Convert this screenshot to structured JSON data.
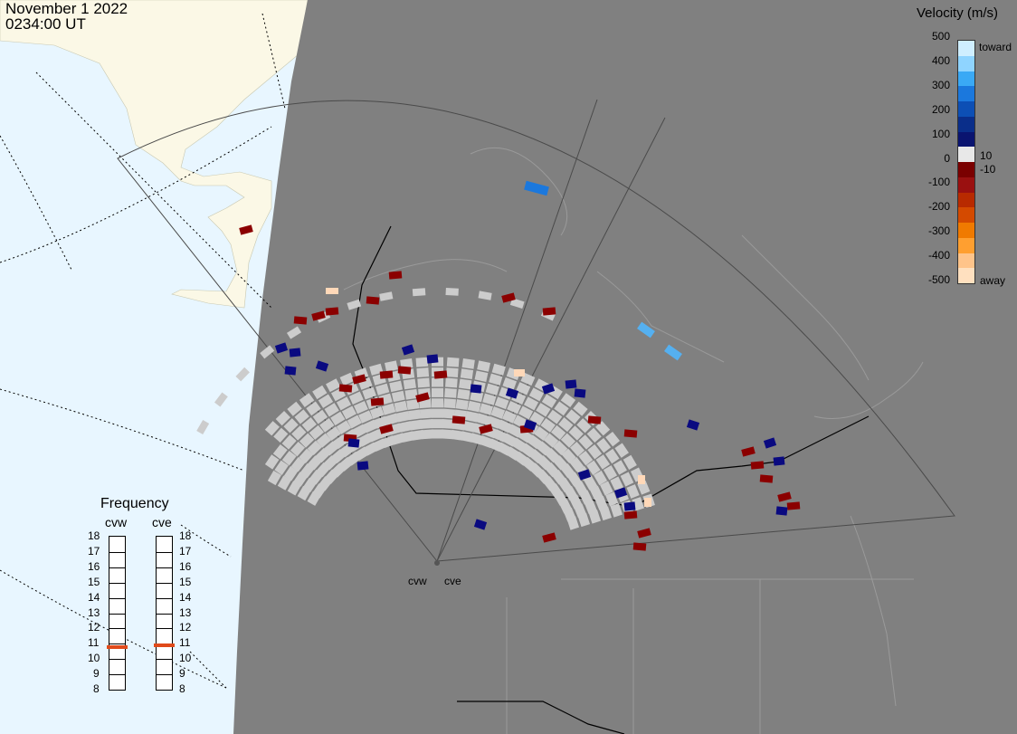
{
  "datetime": {
    "date": "November 1 2022",
    "time": "0234:00 UT"
  },
  "velocity_scale": {
    "title": "Velocity (m/s)",
    "ticks": [
      "500",
      "400",
      "300",
      "200",
      "100",
      "0",
      "-100",
      "-200",
      "-300",
      "-400",
      "-500"
    ],
    "labels": {
      "toward": "toward",
      "away": "away",
      "pos_threshold": "10",
      "neg_threshold": "-10"
    },
    "colors": [
      "#cfeeff",
      "#8fd4ff",
      "#3aa9f5",
      "#1b78dd",
      "#0d4fb5",
      "#0a2e8a",
      "#0a1470",
      "#e8e8e8",
      "#7a0000",
      "#9a1010",
      "#b82a00",
      "#d44a00",
      "#f07a00",
      "#ff9f30",
      "#ffc48a",
      "#ffe0bf"
    ]
  },
  "frequency": {
    "title": "Frequency",
    "radars": [
      {
        "name": "cvw",
        "freq_mhz": 10.8
      },
      {
        "name": "cve",
        "freq_mhz": 10.9
      }
    ],
    "ticks": [
      "18",
      "17",
      "16",
      "15",
      "14",
      "13",
      "12",
      "11",
      "10",
      "9",
      "8"
    ],
    "range_mhz": [
      8,
      18
    ],
    "marker_color": "#e04a1a"
  },
  "map": {
    "ocean_color": "#e8f6ff",
    "land_color": "#fbf8e6",
    "night_color": "#808080",
    "radar_sites": [
      {
        "name": "cvw"
      },
      {
        "name": "cve"
      }
    ]
  },
  "echo_colors": {
    "ground_scatter": "#cccccc",
    "away_dark": "#8b0000",
    "toward_dark": "#0a0a80",
    "toward_light": "#55b0f0",
    "away_light": "#ffd8b8"
  }
}
